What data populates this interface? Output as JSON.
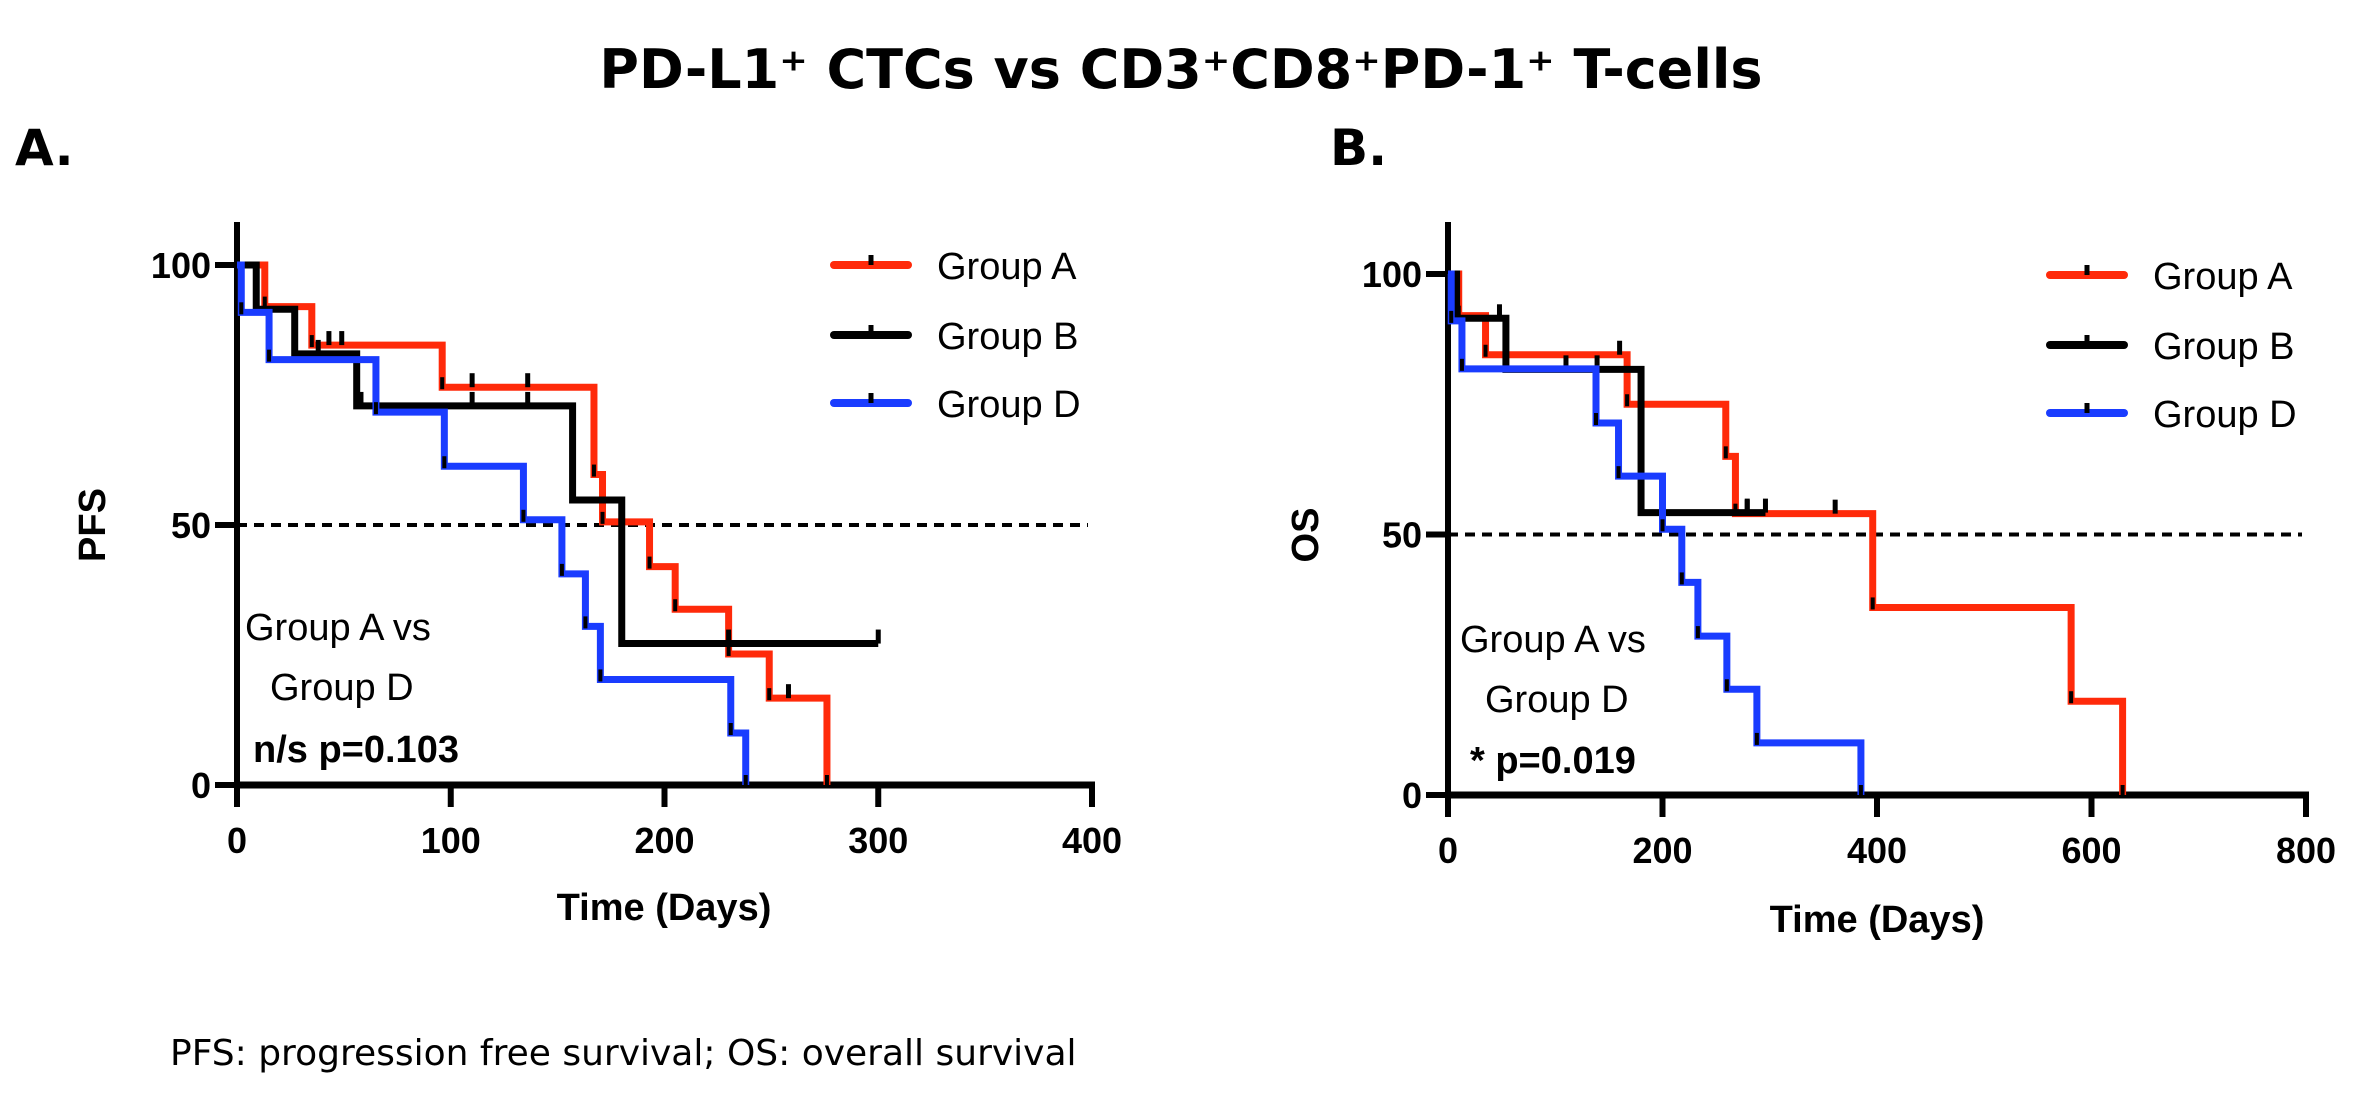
{
  "figure": {
    "title": "PD-L1⁺ CTCs vs CD3⁺CD8⁺PD-1⁺ T-cells",
    "footnote": "PFS: progression free survival; OS: overall survival"
  },
  "colors": {
    "group_a": "#ff2a0a",
    "group_b": "#000000",
    "group_d": "#1a3cff",
    "reference_line": "#000000"
  },
  "chart_data": [
    {
      "type": "line",
      "subtype": "kaplan-meier-step",
      "panel_label": "A.",
      "title": "",
      "xlabel": "Time (Days)",
      "ylabel": "PFS",
      "xlim": [
        0,
        400
      ],
      "ylim": [
        0,
        100
      ],
      "xticks": [
        0,
        100,
        200,
        300,
        400
      ],
      "xtick_labels": [
        "0",
        "100",
        "200",
        "300",
        "400"
      ],
      "yticks": [
        0,
        50,
        100
      ],
      "ytick_labels": [
        "0",
        "50",
        "100"
      ],
      "reference_line": {
        "y": 50,
        "style": "dashed"
      },
      "grid": false,
      "legend_position": "top-right",
      "annotation": [
        "Group A vs",
        "Group D",
        "n/s p=0.103"
      ],
      "series": [
        {
          "name": "Group A",
          "color_key": "group_a",
          "steps": [
            [
              0,
              100
            ],
            [
              13,
              92
            ],
            [
              35,
              84.6
            ],
            [
              96,
              76.5
            ],
            [
              167,
              59.7
            ],
            [
              171,
              50.6
            ],
            [
              193,
              42
            ],
            [
              205,
              33.8
            ],
            [
              230,
              25.2
            ],
            [
              249,
              16.7
            ],
            [
              276,
              0
            ]
          ],
          "end": 276,
          "censored": [
            [
              43,
              84.6
            ],
            [
              49,
              84.6
            ],
            [
              110,
              76.5
            ],
            [
              136,
              76.5
            ],
            [
              258,
              16.7
            ]
          ]
        },
        {
          "name": "Group B",
          "color_key": "group_b",
          "steps": [
            [
              0,
              100
            ],
            [
              9,
              91.5
            ],
            [
              27,
              82.9
            ],
            [
              56,
              72.9
            ],
            [
              157,
              54.8
            ],
            [
              180,
              27.2
            ]
          ],
          "end": 300,
          "censored": [
            [
              38,
              82.9
            ],
            [
              58,
              72.9
            ],
            [
              110,
              72.9
            ],
            [
              136,
              72.9
            ],
            [
              230,
              27.2
            ],
            [
              300,
              27.2
            ]
          ]
        },
        {
          "name": "Group D",
          "color_key": "group_d",
          "steps": [
            [
              0,
              100
            ],
            [
              2,
              90.9
            ],
            [
              15,
              81.8
            ],
            [
              65,
              71.7
            ],
            [
              97,
              61.3
            ],
            [
              134,
              51
            ],
            [
              152,
              40.6
            ],
            [
              163,
              30.5
            ],
            [
              170,
              20.3
            ],
            [
              231,
              10
            ],
            [
              238,
              0
            ]
          ],
          "end": 238,
          "censored": []
        }
      ]
    },
    {
      "type": "line",
      "subtype": "kaplan-meier-step",
      "panel_label": "B.",
      "title": "",
      "xlabel": "Time (Days)",
      "ylabel": "OS",
      "xlim": [
        0,
        800
      ],
      "ylim": [
        0,
        100
      ],
      "xticks": [
        0,
        200,
        400,
        600,
        800
      ],
      "xtick_labels": [
        "0",
        "200",
        "400",
        "600",
        "800"
      ],
      "yticks": [
        0,
        50,
        100
      ],
      "ytick_labels": [
        "0",
        "50",
        "100"
      ],
      "reference_line": {
        "y": 50,
        "style": "dashed"
      },
      "grid": false,
      "legend_position": "top-right",
      "annotation": [
        "Group A vs",
        "Group D",
        "* p=0.019"
      ],
      "series": [
        {
          "name": "Group A",
          "color_key": "group_a",
          "steps": [
            [
              0,
              100
            ],
            [
              10,
              92
            ],
            [
              35,
              84.5
            ],
            [
              167,
              75
            ],
            [
              259,
              65
            ],
            [
              268,
              54
            ],
            [
              396,
              36
            ],
            [
              581,
              18
            ],
            [
              629,
              0
            ]
          ],
          "end": 629,
          "censored": [
            [
              160,
              84.5
            ],
            [
              279,
              54
            ],
            [
              361,
              54
            ]
          ]
        },
        {
          "name": "Group B",
          "color_key": "group_b",
          "steps": [
            [
              0,
              100
            ],
            [
              8,
              91.5
            ],
            [
              54,
              81.7
            ],
            [
              180,
              54.2
            ]
          ],
          "end": 296,
          "censored": [
            [
              48,
              91.5
            ],
            [
              110,
              81.7
            ],
            [
              139,
              81.7
            ],
            [
              279,
              54.2
            ],
            [
              296,
              54.2
            ]
          ]
        },
        {
          "name": "Group D",
          "color_key": "group_d",
          "steps": [
            [
              0,
              100
            ],
            [
              3,
              91
            ],
            [
              13,
              81.8
            ],
            [
              138,
              71.4
            ],
            [
              159,
              61.2
            ],
            [
              200,
              51
            ],
            [
              218,
              40.8
            ],
            [
              233,
              30.5
            ],
            [
              260,
              20.3
            ],
            [
              288,
              10
            ],
            [
              385,
              0
            ]
          ],
          "end": 385,
          "censored": []
        }
      ]
    }
  ]
}
